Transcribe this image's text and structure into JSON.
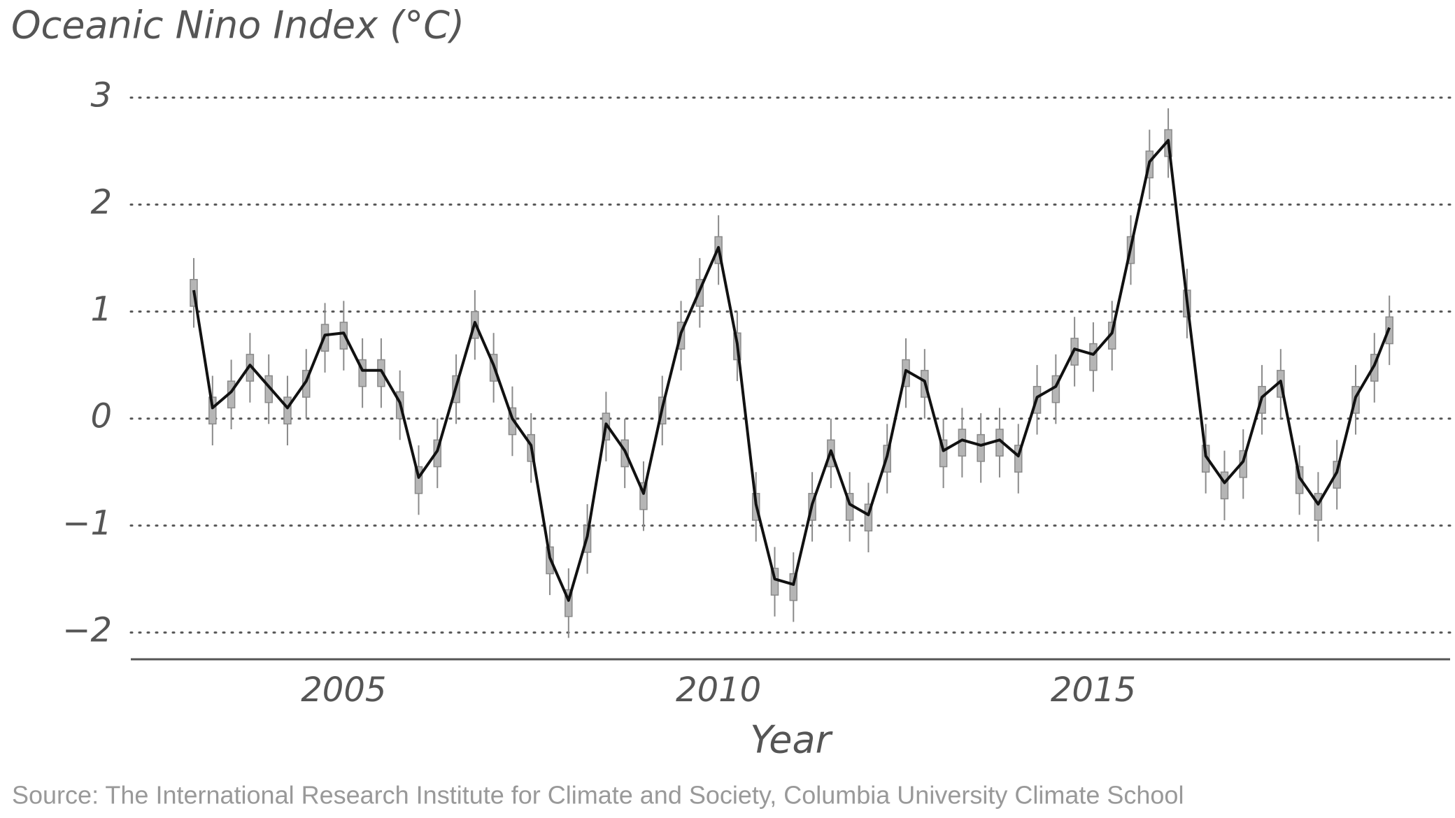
{
  "chart_data": {
    "type": "line",
    "title": "Oceanic Nino Index (°C)",
    "x_label": "Year",
    "source": "Source: The International Research Institute for Climate and Society, Columbia University Climate School",
    "xlim": [
      2002.16,
      2019.76
    ],
    "xticks": [
      2005,
      2010,
      2015
    ],
    "ylim": [
      -2.25,
      3.2
    ],
    "yticks": [
      {
        "value": -2,
        "label": "−2"
      },
      {
        "value": -1,
        "label": "−1"
      },
      0,
      1,
      2,
      3
    ],
    "grid": true,
    "x": [
      2003,
      2003.25,
      2003.5,
      2003.75,
      2004,
      2004.25,
      2004.5,
      2004.75,
      2005,
      2005.25,
      2005.5,
      2005.75,
      2006,
      2006.25,
      2006.5,
      2006.75,
      2007,
      2007.25,
      2007.5,
      2007.75,
      2008,
      2008.25,
      2008.5,
      2008.75,
      2009,
      2009.25,
      2009.5,
      2009.75,
      2010,
      2010.25,
      2010.5,
      2010.75,
      2011,
      2011.25,
      2011.5,
      2011.75,
      2012,
      2012.25,
      2012.5,
      2012.75,
      2013,
      2013.25,
      2013.5,
      2013.75,
      2014,
      2014.25,
      2014.5,
      2014.75,
      2015,
      2015.25,
      2015.5,
      2015.75,
      2016,
      2016.25,
      2016.5,
      2016.75,
      2017,
      2017.25,
      2017.5,
      2017.75,
      2018,
      2018.25,
      2018.5,
      2018.75,
      2018.95
    ],
    "series": [
      {
        "color": "#111111",
        "values": [
          1.2,
          0.1,
          0.25,
          0.5,
          0.3,
          0.1,
          0.35,
          0.78,
          0.8,
          0.45,
          0.45,
          0.15,
          -0.55,
          -0.3,
          0.3,
          0.9,
          0.5,
          0,
          -0.25,
          -1.3,
          -1.7,
          -1.1,
          -0.05,
          -0.3,
          -0.7,
          0.1,
          0.8,
          1.2,
          1.6,
          0.7,
          -0.8,
          -1.5,
          -1.55,
          -0.8,
          -0.3,
          -0.8,
          -0.9,
          -0.35,
          0.45,
          0.35,
          -0.3,
          -0.2,
          -0.25,
          -0.2,
          -0.35,
          0.2,
          0.3,
          0.65,
          0.6,
          0.8,
          1.6,
          2.4,
          2.6,
          1.1,
          -0.35,
          -0.6,
          -0.4,
          0.2,
          0.35,
          -0.55,
          -0.8,
          -0.5,
          0.2,
          0.5,
          0.85
        ]
      }
    ],
    "boxes": {
      "color": "#8a8a8a",
      "low": [
        0.85,
        -0.25,
        -0.1,
        0.15,
        -0.05,
        -0.25,
        0,
        0.43,
        0.45,
        0.1,
        0.1,
        -0.2,
        -0.9,
        -0.65,
        -0.05,
        0.55,
        0.15,
        -0.35,
        -0.6,
        -1.65,
        -2.05,
        -1.45,
        -0.4,
        -0.65,
        -1.05,
        -0.25,
        0.45,
        0.85,
        1.25,
        0.35,
        -1.15,
        -1.85,
        -1.9,
        -1.15,
        -0.65,
        -1.15,
        -1.25,
        -0.7,
        0.1,
        0,
        -0.65,
        -0.55,
        -0.6,
        -0.55,
        -0.7,
        -0.15,
        -0.05,
        0.3,
        0.25,
        0.45,
        1.25,
        2.05,
        2.25,
        0.75,
        -0.7,
        -0.95,
        -0.75,
        -0.15,
        0,
        -0.9,
        -1.15,
        -0.85,
        -0.15,
        0.15,
        0.5
      ],
      "q1": [
        1.05,
        -0.05,
        0.1,
        0.35,
        0.15,
        -0.05,
        0.2,
        0.63,
        0.65,
        0.3,
        0.3,
        0,
        -0.7,
        -0.45,
        0.15,
        0.75,
        0.35,
        -0.15,
        -0.4,
        -1.45,
        -1.85,
        -1.25,
        -0.2,
        -0.45,
        -0.85,
        -0.05,
        0.65,
        1.05,
        1.45,
        0.55,
        -0.95,
        -1.65,
        -1.7,
        -0.95,
        -0.45,
        -0.95,
        -1.05,
        -0.5,
        0.3,
        0.2,
        -0.45,
        -0.35,
        -0.4,
        -0.35,
        -0.5,
        0.05,
        0.15,
        0.5,
        0.45,
        0.65,
        1.45,
        2.25,
        2.45,
        0.95,
        -0.5,
        -0.75,
        -0.55,
        0.05,
        0.2,
        -0.7,
        -0.95,
        -0.65,
        0.05,
        0.35,
        0.7
      ],
      "q3": [
        1.3,
        0.2,
        0.35,
        0.6,
        0.4,
        0.2,
        0.45,
        0.88,
        0.9,
        0.55,
        0.55,
        0.25,
        -0.45,
        -0.2,
        0.4,
        1,
        0.6,
        0.1,
        -0.15,
        -1.2,
        -1.6,
        -1,
        0.05,
        -0.2,
        -0.6,
        0.2,
        0.9,
        1.3,
        1.7,
        0.8,
        -0.7,
        -1.4,
        -1.45,
        -0.7,
        -0.2,
        -0.7,
        -0.8,
        -0.25,
        0.55,
        0.45,
        -0.2,
        -0.1,
        -0.15,
        -0.1,
        -0.25,
        0.3,
        0.4,
        0.75,
        0.7,
        0.9,
        1.7,
        2.5,
        2.7,
        1.2,
        -0.25,
        -0.5,
        -0.3,
        0.3,
        0.45,
        -0.45,
        -0.7,
        -0.4,
        0.3,
        0.6,
        0.95
      ],
      "high": [
        1.5,
        0.4,
        0.55,
        0.8,
        0.6,
        0.4,
        0.65,
        1.08,
        1.1,
        0.75,
        0.75,
        0.45,
        -0.25,
        0,
        0.6,
        1.2,
        0.8,
        0.3,
        0.05,
        -1,
        -1.4,
        -0.8,
        0.25,
        0,
        -0.4,
        0.4,
        1.1,
        1.5,
        1.9,
        1,
        -0.5,
        -1.2,
        -1.25,
        -0.5,
        0,
        -0.5,
        -0.6,
        -0.05,
        0.75,
        0.65,
        0,
        0.1,
        0.05,
        0.1,
        -0.05,
        0.5,
        0.6,
        0.95,
        0.9,
        1.1,
        1.9,
        2.7,
        2.9,
        1.4,
        -0.05,
        -0.3,
        -0.1,
        0.5,
        0.65,
        -0.25,
        -0.5,
        -0.2,
        0.5,
        0.8,
        1.15
      ]
    }
  }
}
